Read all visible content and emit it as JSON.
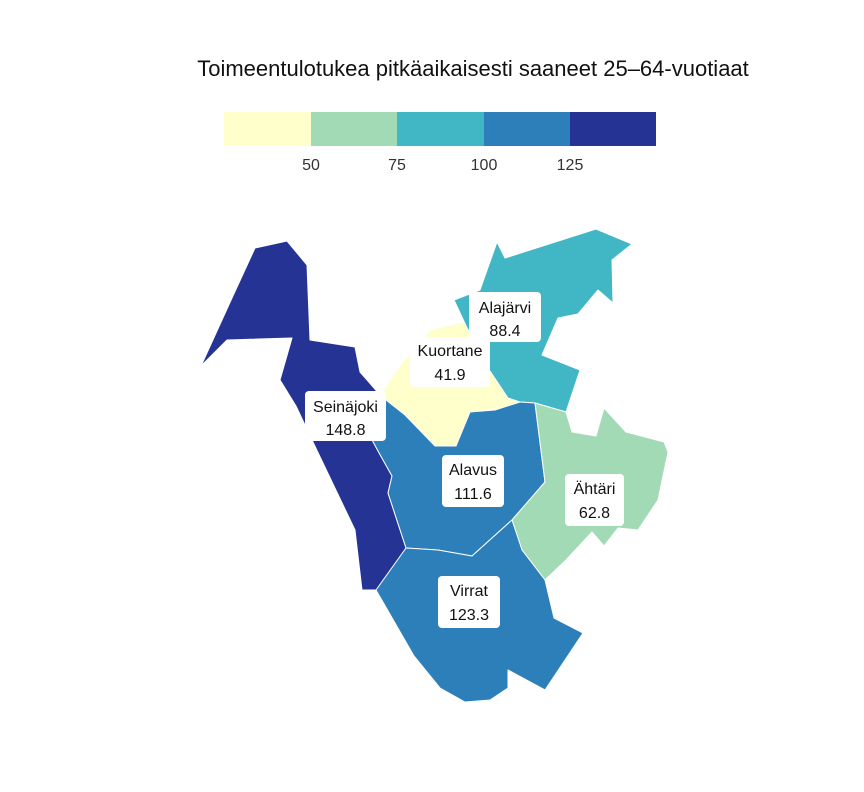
{
  "title": "Toimeentulotukea pitkäaikaisesti saaneet 25–64-vuotiaat",
  "legend": {
    "ticks": [
      "50",
      "75",
      "100",
      "125"
    ],
    "colors": [
      "#ffffcc",
      "#a1dab4",
      "#41b6c4",
      "#2c7fb8",
      "#253494"
    ]
  },
  "municipalities": [
    {
      "name": "Seinäjoki",
      "value": "148.8",
      "color": "#253494"
    },
    {
      "name": "Alajärvi",
      "value": "88.4",
      "color": "#41b6c4"
    },
    {
      "name": "Kuortane",
      "value": "41.9",
      "color": "#ffffcc"
    },
    {
      "name": "Alavus",
      "value": "111.6",
      "color": "#2c7fb8"
    },
    {
      "name": "Ähtäri",
      "value": "62.8",
      "color": "#a1dab4"
    },
    {
      "name": "Virrat",
      "value": "123.3",
      "color": "#2c7fb8"
    }
  ]
}
